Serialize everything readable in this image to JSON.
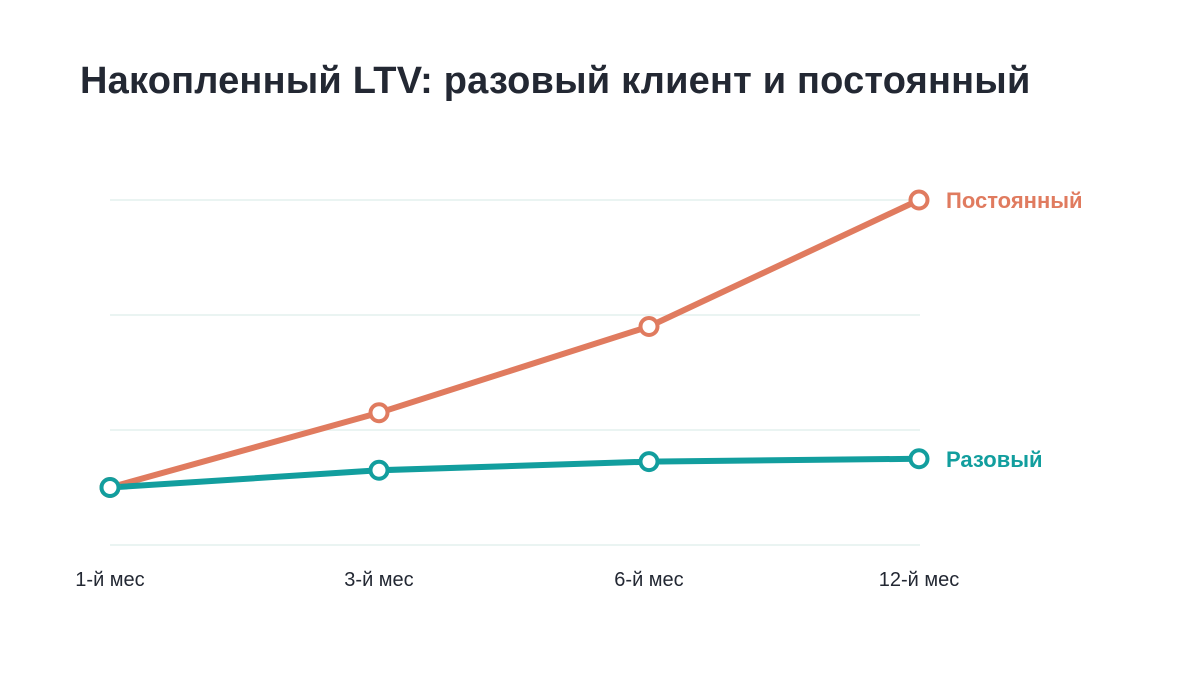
{
  "title": "Накопленный LTV: разовый клиент и постоянный",
  "chart_data": {
    "type": "line",
    "title": "Накопленный LTV: разовый клиент и постоянный",
    "xlabel": "",
    "ylabel": "",
    "categories": [
      "1-й мес",
      "3-й мес",
      "6-й мес",
      "12-й мес"
    ],
    "ylim": [
      0,
      6
    ],
    "y_gridlines": [
      0,
      2,
      4,
      6
    ],
    "grid": true,
    "y_tick_labels": false,
    "legend": "inline-right",
    "series": [
      {
        "name": "Постоянный",
        "values": [
          1,
          2.3,
          3.8,
          6
        ],
        "color": "#E07B5F"
      },
      {
        "name": "Разовый",
        "values": [
          1,
          1.3,
          1.45,
          1.5
        ],
        "color": "#129E9E"
      }
    ],
    "colors": {
      "grid": "#E3F1EE",
      "text": "#232833"
    }
  }
}
